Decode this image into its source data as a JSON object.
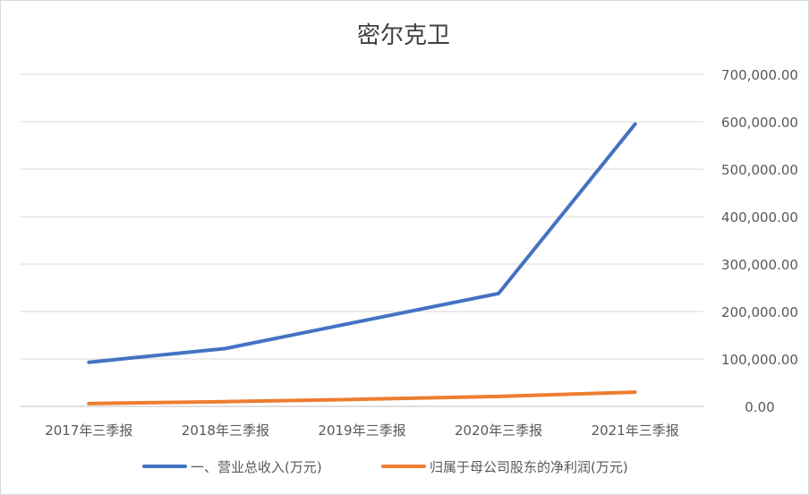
{
  "chart_data": {
    "type": "line",
    "title": "密尔克卫",
    "categories": [
      "2017年三季报",
      "2018年三季报",
      "2019年三季报",
      "2020年三季报",
      "2021年三季报"
    ],
    "y_ticks": [
      "0.00",
      "100,000.00",
      "200,000.00",
      "300,000.00",
      "400,000.00",
      "500,000.00",
      "600,000.00",
      "700,000.00"
    ],
    "ylim": [
      0,
      700000
    ],
    "y_axis_side": "right",
    "grid": true,
    "legend_position": "bottom",
    "series": [
      {
        "name": "一、营业总收入(万元)",
        "color": "#4472C4",
        "values": [
          93000,
          122000,
          180000,
          238000,
          595000
        ]
      },
      {
        "name": "归属于母公司股东的净利润(万元)",
        "color": "#ED7D31",
        "values": [
          6000,
          10000,
          15000,
          21000,
          30000
        ]
      }
    ]
  }
}
